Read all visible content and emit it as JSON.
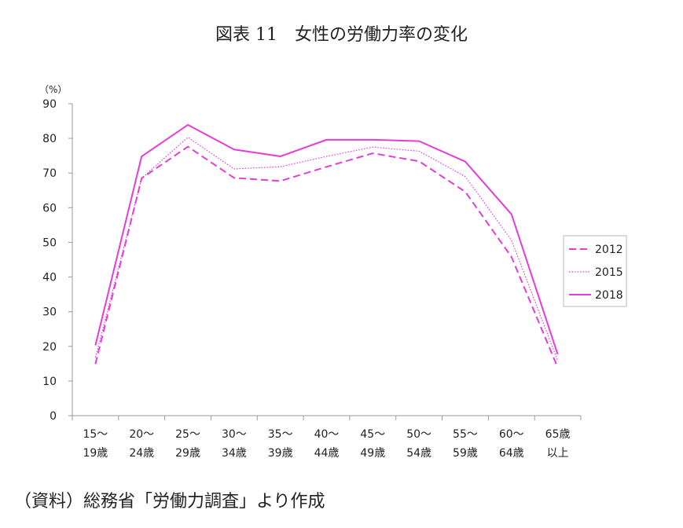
{
  "title": "図表 11　女性の労働力率の変化",
  "source": "（資料）総務省「労働力調査」より作成",
  "chart_data": {
    "type": "line",
    "y_unit_label": "（%）",
    "ylim": [
      0,
      90
    ],
    "y_ticks": [
      0,
      10,
      20,
      30,
      40,
      50,
      60,
      70,
      80,
      90
    ],
    "grid": false,
    "legend_position": "right",
    "categories": [
      [
        "15～",
        "19歳"
      ],
      [
        "20～",
        "24歳"
      ],
      [
        "25～",
        "29歳"
      ],
      [
        "30～",
        "34歳"
      ],
      [
        "35～",
        "39歳"
      ],
      [
        "40～",
        "44歳"
      ],
      [
        "45～",
        "49歳"
      ],
      [
        "50～",
        "54歳"
      ],
      [
        "55～",
        "59歳"
      ],
      [
        "60～",
        "64歳"
      ],
      [
        "65歳",
        "以上"
      ]
    ],
    "series": [
      {
        "name": "2012",
        "style": "dashed",
        "color": "#e53bd8",
        "values": [
          14.9,
          68.5,
          77.6,
          68.6,
          67.7,
          71.8,
          75.7,
          73.4,
          64.6,
          45.8,
          13.9
        ]
      },
      {
        "name": "2015",
        "style": "dotted",
        "color": "#e53bd8",
        "values": [
          16.8,
          68.5,
          80.3,
          71.2,
          71.8,
          74.8,
          77.5,
          76.3,
          69.0,
          50.6,
          15.9
        ]
      },
      {
        "name": "2018",
        "style": "solid",
        "color": "#e53bd8",
        "values": [
          20.3,
          74.8,
          83.9,
          76.8,
          74.8,
          79.6,
          79.6,
          79.2,
          73.3,
          58.1,
          17.7
        ]
      }
    ]
  }
}
